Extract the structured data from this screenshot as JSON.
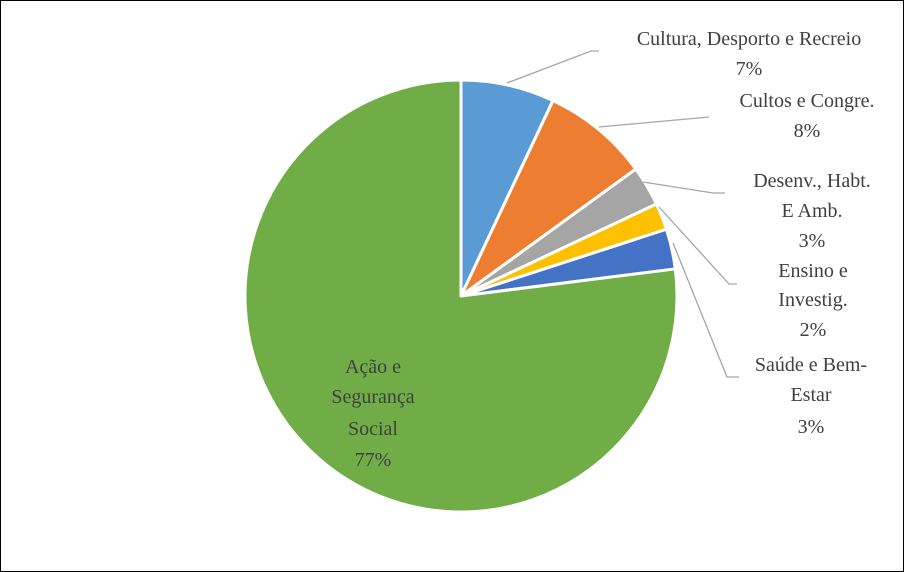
{
  "chart_data": {
    "type": "pie",
    "slices": [
      {
        "label": "Cultura, Desporto e Recreio",
        "value": 7,
        "display": "7%",
        "color": "#5B9BD5"
      },
      {
        "label": "Cultos e Congre.",
        "value": 8,
        "display": "8%",
        "color": "#ED7D31"
      },
      {
        "label": "Desenv., Habt. E Amb.",
        "value": 3,
        "display": "3%",
        "color": "#A5A5A5"
      },
      {
        "label": "Ensino e Investig.",
        "value": 2,
        "display": "2%",
        "color": "#FFC000"
      },
      {
        "label": "Saúde e Bem-Estar",
        "value": 3,
        "display": "3%",
        "color": "#4472C4"
      },
      {
        "label": "Ação e Segurança Social",
        "value": 77,
        "display": "77%",
        "color": "#70AD47"
      }
    ],
    "legend": "none",
    "start_angle": "12 o'clock, clockwise"
  }
}
